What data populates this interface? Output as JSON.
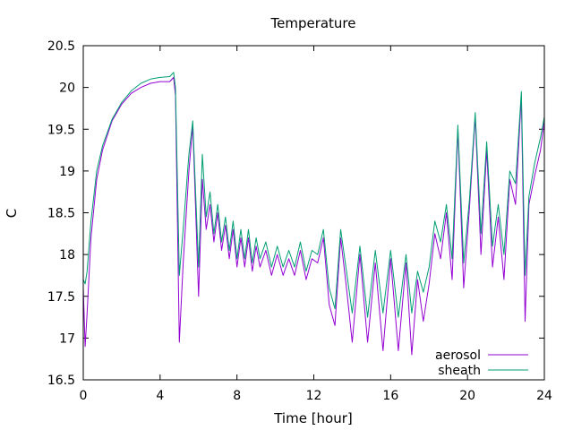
{
  "chart_data": {
    "type": "line",
    "title": "Temperature",
    "xlabel": "Time [hour]",
    "ylabel": "C",
    "xlim": [
      0,
      24
    ],
    "ylim": [
      16.5,
      20.5
    ],
    "xticks": [
      "0",
      "4",
      "8",
      "12",
      "16",
      "20",
      "24"
    ],
    "yticks": [
      "16.5",
      "17",
      "17.5",
      "18",
      "18.5",
      "19",
      "19.5",
      "20",
      "20.5"
    ],
    "grid": false,
    "legend_position": "bottom-right",
    "series": [
      {
        "name": "aerosol",
        "color": "#9400d3",
        "x": [
          0,
          0.1,
          0.2,
          0.4,
          0.7,
          1.0,
          1.5,
          2.0,
          2.5,
          3.0,
          3.5,
          4.0,
          4.5,
          4.7,
          4.8,
          5.0,
          5.2,
          5.5,
          5.7,
          6.0,
          6.2,
          6.4,
          6.6,
          6.8,
          7.0,
          7.2,
          7.4,
          7.6,
          7.8,
          8.0,
          8.2,
          8.4,
          8.6,
          8.8,
          9.0,
          9.2,
          9.5,
          9.8,
          10.1,
          10.4,
          10.7,
          11.0,
          11.3,
          11.6,
          11.9,
          12.2,
          12.5,
          12.8,
          13.1,
          13.4,
          13.7,
          14.0,
          14.4,
          14.8,
          15.2,
          15.6,
          16.0,
          16.4,
          16.8,
          17.1,
          17.4,
          17.7,
          18.0,
          18.3,
          18.6,
          18.9,
          19.2,
          19.5,
          19.8,
          20.1,
          20.4,
          20.7,
          21.0,
          21.3,
          21.6,
          21.9,
          22.2,
          22.5,
          22.8,
          23.0,
          23.2,
          23.5,
          23.8,
          24.0
        ],
        "values": [
          17.6,
          16.9,
          17.3,
          18.2,
          18.9,
          19.25,
          19.6,
          19.8,
          19.93,
          20.0,
          20.05,
          20.07,
          20.07,
          20.12,
          19.9,
          16.95,
          17.9,
          19.0,
          19.55,
          17.5,
          18.9,
          18.3,
          18.6,
          18.15,
          18.5,
          18.05,
          18.35,
          17.95,
          18.3,
          17.85,
          18.2,
          17.85,
          18.2,
          17.8,
          18.1,
          17.85,
          18.05,
          17.75,
          18.0,
          17.75,
          17.95,
          17.75,
          18.05,
          17.7,
          17.95,
          17.9,
          18.2,
          17.4,
          17.15,
          18.2,
          17.6,
          16.95,
          18.0,
          16.95,
          17.9,
          16.85,
          17.95,
          16.85,
          17.9,
          16.8,
          17.7,
          17.2,
          17.65,
          18.25,
          17.95,
          18.5,
          17.7,
          19.5,
          17.6,
          18.55,
          19.65,
          18.0,
          19.25,
          17.85,
          18.45,
          17.7,
          18.9,
          18.6,
          19.9,
          17.2,
          18.6,
          18.95,
          19.25,
          19.6
        ]
      },
      {
        "name": "sheath",
        "color": "#009e73",
        "x": [
          0,
          0.1,
          0.2,
          0.4,
          0.7,
          1.0,
          1.5,
          2.0,
          2.5,
          3.0,
          3.5,
          4.0,
          4.5,
          4.7,
          4.8,
          5.0,
          5.2,
          5.5,
          5.7,
          6.0,
          6.2,
          6.4,
          6.6,
          6.8,
          7.0,
          7.2,
          7.4,
          7.6,
          7.8,
          8.0,
          8.2,
          8.4,
          8.6,
          8.8,
          9.0,
          9.2,
          9.5,
          9.8,
          10.1,
          10.4,
          10.7,
          11.0,
          11.3,
          11.6,
          11.9,
          12.2,
          12.5,
          12.8,
          13.1,
          13.4,
          13.7,
          14.0,
          14.4,
          14.8,
          15.2,
          15.6,
          16.0,
          16.4,
          16.8,
          17.1,
          17.4,
          17.7,
          18.0,
          18.3,
          18.6,
          18.9,
          19.2,
          19.5,
          19.8,
          20.1,
          20.4,
          20.7,
          21.0,
          21.3,
          21.6,
          21.9,
          22.2,
          22.5,
          22.8,
          23.0,
          23.2,
          23.5,
          23.8,
          24.0
        ],
        "values": [
          17.7,
          17.65,
          17.8,
          18.4,
          19.0,
          19.3,
          19.62,
          19.82,
          19.96,
          20.05,
          20.1,
          20.12,
          20.13,
          20.18,
          20.0,
          17.75,
          18.3,
          19.2,
          19.6,
          17.85,
          19.2,
          18.45,
          18.75,
          18.25,
          18.6,
          18.15,
          18.45,
          18.05,
          18.4,
          17.95,
          18.3,
          17.95,
          18.3,
          17.9,
          18.2,
          17.95,
          18.15,
          17.85,
          18.1,
          17.85,
          18.05,
          17.85,
          18.15,
          17.8,
          18.05,
          18.0,
          18.3,
          17.6,
          17.35,
          18.3,
          17.8,
          17.3,
          18.1,
          17.25,
          18.05,
          17.3,
          18.05,
          17.25,
          18.0,
          17.3,
          17.8,
          17.55,
          17.85,
          18.4,
          18.15,
          18.6,
          17.95,
          19.55,
          17.9,
          18.65,
          19.7,
          18.25,
          19.35,
          18.1,
          18.6,
          18.0,
          19.0,
          18.85,
          19.95,
          17.75,
          18.7,
          19.1,
          19.4,
          19.65
        ]
      }
    ]
  }
}
